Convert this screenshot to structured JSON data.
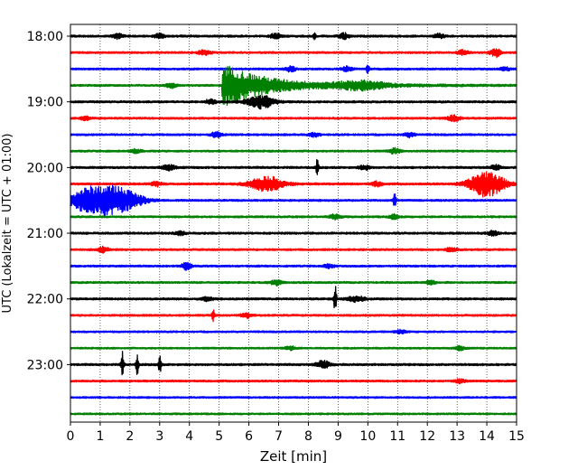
{
  "chart_data": {
    "type": "line",
    "title": "",
    "xlabel": "Zeit  [min]",
    "ylabel": "UTC (Lokalzeit = UTC + 01:00)",
    "xlim": [
      0,
      15
    ],
    "x_ticks": [
      "0",
      "1",
      "2",
      "3",
      "4",
      "5",
      "6",
      "7",
      "8",
      "9",
      "10",
      "11",
      "12",
      "13",
      "14",
      "15"
    ],
    "y_ticks": [
      "18:00",
      "19:00",
      "20:00",
      "21:00",
      "22:00",
      "23:00"
    ],
    "grid": "vertical dotted",
    "trace_interval_min": 15,
    "trace_colors": [
      "#000000",
      "#ff0000",
      "#0000ff",
      "#008000"
    ],
    "traces": [
      {
        "start": "18:00",
        "noise": 1.2,
        "events": [
          {
            "t": 8.2,
            "amp": 5,
            "dur": 0.3,
            "kind": "spike"
          },
          {
            "t": 6.9,
            "amp": 3,
            "dur": 0.3
          },
          {
            "t": 1.6,
            "amp": 2.5,
            "dur": 0.3
          },
          {
            "t": 3.0,
            "amp": 2.5,
            "dur": 0.3
          },
          {
            "t": 9.2,
            "amp": 3,
            "dur": 0.3
          },
          {
            "t": 12.4,
            "amp": 2.5,
            "dur": 0.3
          }
        ]
      },
      {
        "start": "18:15",
        "noise": 1.1,
        "events": [
          {
            "t": 14.3,
            "amp": 5,
            "dur": 0.3
          },
          {
            "t": 4.5,
            "amp": 2.5,
            "dur": 0.4
          },
          {
            "t": 13.2,
            "amp": 2.5,
            "dur": 0.3
          }
        ]
      },
      {
        "start": "18:30",
        "noise": 1.1,
        "events": [
          {
            "t": 10.0,
            "amp": 6,
            "dur": 0.2,
            "kind": "spike"
          },
          {
            "t": 7.4,
            "amp": 3,
            "dur": 0.3
          },
          {
            "t": 9.3,
            "amp": 2.5,
            "dur": 0.3
          },
          {
            "t": 14.6,
            "amp": 2,
            "dur": 0.3
          }
        ]
      },
      {
        "start": "18:45",
        "noise": 1.1,
        "events": [
          {
            "t": 5.1,
            "amp": 22,
            "dur": 3.5,
            "kind": "quake"
          },
          {
            "t": 9.8,
            "amp": 4,
            "dur": 1.5
          },
          {
            "t": 3.4,
            "amp": 2.5,
            "dur": 0.3
          }
        ]
      },
      {
        "start": "19:00",
        "noise": 1.2,
        "events": [
          {
            "t": 6.4,
            "amp": 7,
            "dur": 0.8
          },
          {
            "t": 4.7,
            "amp": 2.5,
            "dur": 0.3
          }
        ]
      },
      {
        "start": "19:15",
        "noise": 1.1,
        "events": [
          {
            "t": 12.9,
            "amp": 3,
            "dur": 0.4
          },
          {
            "t": 0.5,
            "amp": 2,
            "dur": 0.3
          }
        ]
      },
      {
        "start": "19:30",
        "noise": 1.1,
        "events": [
          {
            "t": 4.9,
            "amp": 3,
            "dur": 0.3
          },
          {
            "t": 8.2,
            "amp": 2,
            "dur": 0.3
          },
          {
            "t": 11.4,
            "amp": 2.5,
            "dur": 0.3
          }
        ]
      },
      {
        "start": "19:45",
        "noise": 1.1,
        "events": [
          {
            "t": 10.9,
            "amp": 3,
            "dur": 0.3
          },
          {
            "t": 2.2,
            "amp": 2,
            "dur": 0.3
          }
        ]
      },
      {
        "start": "20:00",
        "noise": 1.2,
        "events": [
          {
            "t": 8.3,
            "amp": 9,
            "dur": 0.3,
            "kind": "spike"
          },
          {
            "t": 3.3,
            "amp": 3,
            "dur": 0.4
          },
          {
            "t": 9.9,
            "amp": 2.5,
            "dur": 0.3
          },
          {
            "t": 14.3,
            "amp": 2.5,
            "dur": 0.3
          }
        ]
      },
      {
        "start": "20:15",
        "noise": 1.2,
        "events": [
          {
            "t": 6.6,
            "amp": 8,
            "dur": 1.0
          },
          {
            "t": 14.0,
            "amp": 14,
            "dur": 1.0,
            "kind": "burst"
          },
          {
            "t": 2.9,
            "amp": 2.5,
            "dur": 0.3
          },
          {
            "t": 10.3,
            "amp": 2.5,
            "dur": 0.3
          }
        ]
      },
      {
        "start": "20:30",
        "noise": 1.1,
        "events": [
          {
            "t": 0.6,
            "amp": 12,
            "dur": 1.2,
            "kind": "burst"
          },
          {
            "t": 1.6,
            "amp": 14,
            "dur": 1.3,
            "kind": "burst"
          },
          {
            "t": 10.9,
            "amp": 9,
            "dur": 0.2,
            "kind": "spike"
          }
        ]
      },
      {
        "start": "20:45",
        "noise": 1.1,
        "events": [
          {
            "t": 8.9,
            "amp": 3,
            "dur": 0.3
          },
          {
            "t": 10.9,
            "amp": 2.5,
            "dur": 0.3
          }
        ]
      },
      {
        "start": "21:00",
        "noise": 1.2,
        "events": [
          {
            "t": 14.2,
            "amp": 3,
            "dur": 0.3
          },
          {
            "t": 3.7,
            "amp": 2,
            "dur": 0.3
          }
        ]
      },
      {
        "start": "21:15",
        "noise": 1.1,
        "events": [
          {
            "t": 1.1,
            "amp": 3,
            "dur": 0.3
          },
          {
            "t": 12.8,
            "amp": 2.5,
            "dur": 0.3
          }
        ]
      },
      {
        "start": "21:30",
        "noise": 1.1,
        "events": [
          {
            "t": 3.9,
            "amp": 4,
            "dur": 0.3
          },
          {
            "t": 8.7,
            "amp": 2,
            "dur": 0.3
          }
        ]
      },
      {
        "start": "21:45",
        "noise": 1.1,
        "events": [
          {
            "t": 6.9,
            "amp": 3,
            "dur": 0.3
          },
          {
            "t": 12.1,
            "amp": 2,
            "dur": 0.3
          }
        ]
      },
      {
        "start": "22:00",
        "noise": 1.2,
        "events": [
          {
            "t": 8.9,
            "amp": 16,
            "dur": 0.3,
            "kind": "spike"
          },
          {
            "t": 9.6,
            "amp": 3,
            "dur": 0.5
          },
          {
            "t": 4.6,
            "amp": 2.5,
            "dur": 0.3
          }
        ]
      },
      {
        "start": "22:15",
        "noise": 1.1,
        "events": [
          {
            "t": 4.8,
            "amp": 6,
            "dur": 0.2,
            "kind": "spike"
          },
          {
            "t": 5.9,
            "amp": 3,
            "dur": 0.3
          }
        ]
      },
      {
        "start": "22:30",
        "noise": 1.0,
        "events": [
          {
            "t": 11.1,
            "amp": 2,
            "dur": 0.3
          }
        ]
      },
      {
        "start": "22:45",
        "noise": 1.0,
        "events": [
          {
            "t": 7.4,
            "amp": 2,
            "dur": 0.3
          },
          {
            "t": 13.1,
            "amp": 2,
            "dur": 0.3
          }
        ]
      },
      {
        "start": "23:00",
        "noise": 1.2,
        "events": [
          {
            "t": 1.75,
            "amp": 15,
            "dur": 0.15,
            "kind": "spike"
          },
          {
            "t": 2.25,
            "amp": 13,
            "dur": 0.15,
            "kind": "spike"
          },
          {
            "t": 3.0,
            "amp": 12,
            "dur": 0.15,
            "kind": "spike"
          },
          {
            "t": 8.5,
            "amp": 4,
            "dur": 0.4
          }
        ]
      },
      {
        "start": "23:15",
        "noise": 1.1,
        "events": [
          {
            "t": 13.1,
            "amp": 2,
            "dur": 0.3
          }
        ]
      },
      {
        "start": "23:30",
        "noise": 1.0,
        "events": []
      },
      {
        "start": "23:45",
        "noise": 1.0,
        "events": []
      }
    ]
  }
}
